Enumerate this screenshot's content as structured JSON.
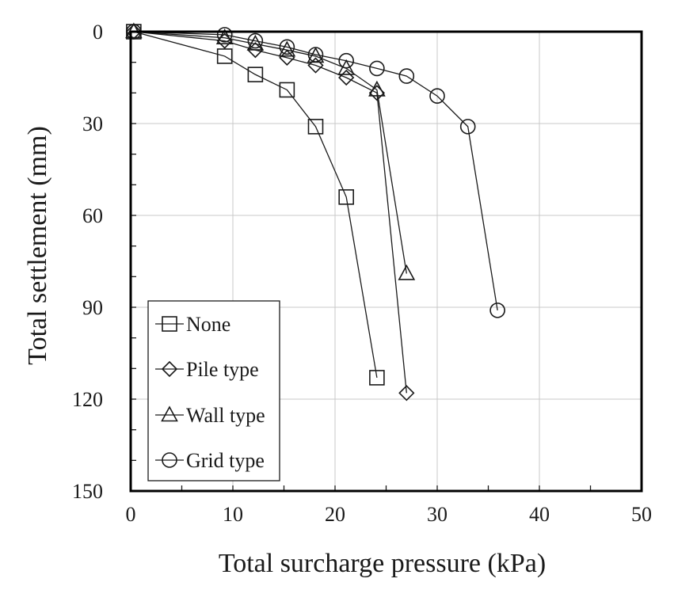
{
  "chart_data": {
    "type": "scatter",
    "title": "",
    "xlabel": "Total surcharge pressure (kPa)",
    "ylabel": "Total settlement (mm)",
    "xlim": [
      0,
      50
    ],
    "ylim": [
      0,
      150
    ],
    "y_inverted": true,
    "x_ticks": [
      0,
      10,
      20,
      30,
      40,
      50
    ],
    "y_ticks": [
      0,
      30,
      60,
      90,
      120,
      150
    ],
    "x_minor_step": 5,
    "y_minor_step": 10,
    "grid": true,
    "legend_position": "bottom-left",
    "line_color": "#1a1a1a",
    "series": [
      {
        "name": "None",
        "marker": "square",
        "points": [
          [
            0.3,
            0
          ],
          [
            9.2,
            8
          ],
          [
            12.2,
            14
          ],
          [
            15.3,
            19
          ],
          [
            18.1,
            31
          ],
          [
            21.1,
            54
          ],
          [
            24.1,
            113
          ]
        ]
      },
      {
        "name": "Pile type",
        "marker": "diamond",
        "points": [
          [
            0.3,
            0
          ],
          [
            9.2,
            3
          ],
          [
            12.2,
            6
          ],
          [
            15.3,
            8.5
          ],
          [
            18.1,
            11
          ],
          [
            21.1,
            15
          ],
          [
            24.1,
            20
          ],
          [
            27.0,
            118
          ]
        ]
      },
      {
        "name": "Wall type",
        "marker": "triangle",
        "points": [
          [
            0.3,
            0
          ],
          [
            9.2,
            2
          ],
          [
            12.2,
            4
          ],
          [
            15.3,
            6
          ],
          [
            18.1,
            8
          ],
          [
            21.1,
            12
          ],
          [
            24.1,
            19
          ],
          [
            27.0,
            79
          ]
        ]
      },
      {
        "name": "Grid type",
        "marker": "circle",
        "points": [
          [
            0.3,
            0
          ],
          [
            9.2,
            1
          ],
          [
            12.2,
            3
          ],
          [
            15.3,
            5
          ],
          [
            18.1,
            7.5
          ],
          [
            21.1,
            9.5
          ],
          [
            24.1,
            12
          ],
          [
            27.0,
            14.5
          ],
          [
            30.0,
            21
          ],
          [
            33.0,
            31
          ],
          [
            35.9,
            91
          ]
        ]
      }
    ]
  }
}
